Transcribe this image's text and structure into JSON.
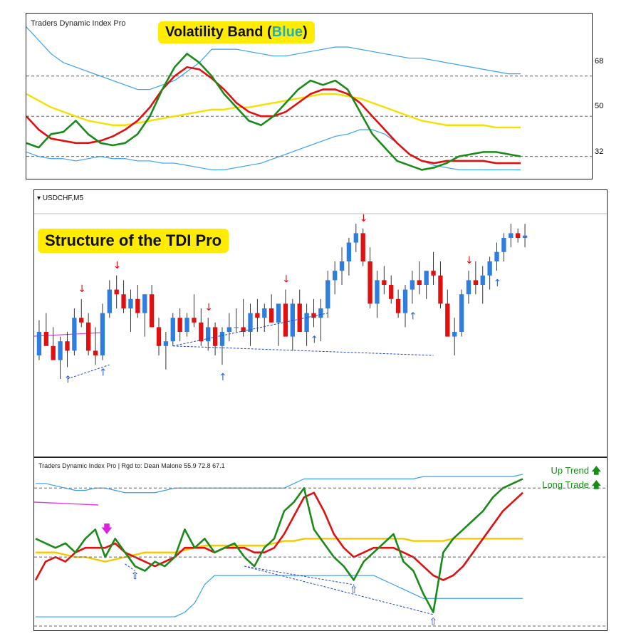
{
  "top_panel": {
    "label": "Traders Dynamic Index Pro",
    "callout_prefix": "Volatility Band (",
    "callout_blue": "Blue",
    "callout_suffix": ")",
    "levels": [
      "68",
      "50",
      "32"
    ]
  },
  "mid_panel": {
    "symbol": "USDCHF,M5",
    "callout": "Structure of the TDI Pro"
  },
  "bottom_panel": {
    "label": "Traders Dynamic Index Pro | Rgd to: Dean Malone   55.9 72.8 67.1",
    "up_trend": "Up Trend",
    "long_trade": "Long Trade"
  },
  "colors": {
    "green_line": "#1a8a1a",
    "red_line": "#e01010",
    "yellow_line": "#f5e000",
    "blue_band": "#3aa0f0",
    "bull_candle": "#2e7de0",
    "bear_candle": "#e01010",
    "callout_bg": "#ffec00",
    "callout_blue_text": "#1ab0c8"
  },
  "chart_data": [
    {
      "type": "line",
      "title": "",
      "ylabel": "",
      "yticks": [
        68,
        50,
        32
      ],
      "ylim": [
        22,
        96
      ],
      "x": [
        0,
        1,
        2,
        3,
        4,
        5,
        6,
        7,
        8,
        9,
        10,
        11,
        12,
        13,
        14,
        15,
        16,
        17,
        18,
        19,
        20,
        21,
        22,
        23,
        24,
        25,
        26,
        27,
        28,
        29,
        30,
        31,
        32,
        33,
        34,
        35,
        36,
        37,
        38,
        39,
        40
      ],
      "series": [
        {
          "role": "rsi",
          "color": "#1a8a1a",
          "values": [
            38,
            36,
            42,
            43,
            48,
            42,
            38,
            37,
            38,
            42,
            50,
            62,
            72,
            78,
            74,
            68,
            60,
            54,
            48,
            46,
            50,
            56,
            62,
            66,
            64,
            66,
            62,
            52,
            42,
            36,
            30,
            28,
            26,
            27,
            29,
            32,
            33,
            34,
            34,
            33,
            32
          ]
        },
        {
          "role": "signal",
          "color": "#e01010",
          "values": [
            50,
            44,
            40,
            39,
            38,
            38,
            39,
            41,
            44,
            48,
            54,
            62,
            68,
            72,
            71,
            67,
            62,
            56,
            52,
            50,
            50,
            52,
            56,
            60,
            62,
            62,
            60,
            56,
            50,
            44,
            38,
            33,
            30,
            29,
            30,
            30,
            30,
            30,
            29,
            29,
            29
          ]
        },
        {
          "role": "market_base",
          "color": "#f5e000",
          "values": [
            60,
            57,
            54,
            52,
            50,
            48,
            47,
            46,
            46,
            47,
            48,
            49,
            50,
            51,
            52,
            53,
            53,
            54,
            54,
            55,
            56,
            57,
            58,
            59,
            60,
            60,
            59,
            58,
            56,
            54,
            52,
            50,
            48,
            47,
            46,
            46,
            46,
            46,
            45,
            45,
            45
          ]
        },
        {
          "role": "volatility_upper",
          "color": "#3aa0f0",
          "values": [
            90,
            84,
            78,
            74,
            72,
            70,
            68,
            66,
            64,
            62,
            62,
            64,
            66,
            70,
            74,
            80,
            80,
            80,
            79,
            78,
            77,
            77,
            78,
            79,
            80,
            81,
            81,
            80,
            79,
            78,
            77,
            76,
            76,
            75,
            74,
            73,
            72,
            71,
            70,
            69,
            69
          ]
        },
        {
          "role": "volatility_lower",
          "color": "#3aa0f0",
          "values": [
            34,
            32,
            31,
            31,
            30,
            31,
            32,
            31,
            31,
            30,
            30,
            29,
            29,
            28,
            27,
            26,
            26,
            27,
            28,
            29,
            31,
            33,
            35,
            37,
            39,
            41,
            42,
            44,
            44,
            42,
            38,
            33,
            30,
            28,
            27,
            26,
            26,
            26,
            26,
            26,
            26
          ]
        }
      ]
    },
    {
      "type": "candlestick",
      "title": "",
      "symbol": "USDCHF,M5",
      "ylim": [
        0,
        100
      ],
      "candles_ohlc": [
        [
          40,
          55,
          38,
          50
        ],
        [
          50,
          58,
          46,
          44
        ],
        [
          44,
          52,
          40,
          38
        ],
        [
          38,
          48,
          30,
          46
        ],
        [
          46,
          50,
          35,
          42
        ],
        [
          42,
          60,
          40,
          56
        ],
        [
          56,
          64,
          52,
          54
        ],
        [
          54,
          58,
          40,
          42
        ],
        [
          42,
          52,
          36,
          40
        ],
        [
          40,
          62,
          38,
          58
        ],
        [
          58,
          72,
          56,
          68
        ],
        [
          68,
          74,
          60,
          66
        ],
        [
          66,
          72,
          58,
          60
        ],
        [
          60,
          68,
          50,
          64
        ],
        [
          64,
          70,
          56,
          58
        ],
        [
          58,
          66,
          48,
          66
        ],
        [
          66,
          70,
          52,
          52
        ],
        [
          52,
          56,
          40,
          44
        ],
        [
          44,
          50,
          34,
          46
        ],
        [
          46,
          58,
          44,
          56
        ],
        [
          56,
          60,
          46,
          50
        ],
        [
          50,
          58,
          48,
          56
        ],
        [
          56,
          66,
          52,
          54
        ],
        [
          54,
          60,
          44,
          46
        ],
        [
          46,
          56,
          42,
          52
        ],
        [
          52,
          54,
          40,
          44
        ],
        [
          44,
          52,
          36,
          50
        ],
        [
          50,
          58,
          46,
          52
        ],
        [
          52,
          60,
          50,
          52
        ],
        [
          52,
          64,
          48,
          50
        ],
        [
          50,
          62,
          44,
          58
        ],
        [
          58,
          64,
          50,
          56
        ],
        [
          56,
          62,
          50,
          60
        ],
        [
          60,
          66,
          56,
          54
        ],
        [
          54,
          60,
          44,
          62
        ],
        [
          62,
          68,
          52,
          48
        ],
        [
          48,
          64,
          42,
          62
        ],
        [
          62,
          68,
          50,
          50
        ],
        [
          50,
          62,
          44,
          58
        ],
        [
          58,
          64,
          52,
          56
        ],
        [
          56,
          64,
          46,
          60
        ],
        [
          60,
          76,
          56,
          72
        ],
        [
          72,
          80,
          66,
          76
        ],
        [
          76,
          86,
          70,
          80
        ],
        [
          80,
          90,
          74,
          88
        ],
        [
          88,
          96,
          84,
          92
        ],
        [
          92,
          94,
          78,
          80
        ],
        [
          80,
          86,
          60,
          62
        ],
        [
          62,
          76,
          56,
          72
        ],
        [
          72,
          78,
          66,
          70
        ],
        [
          70,
          74,
          62,
          64
        ],
        [
          64,
          68,
          56,
          58
        ],
        [
          58,
          70,
          52,
          68
        ],
        [
          68,
          76,
          62,
          72
        ],
        [
          72,
          80,
          66,
          70
        ],
        [
          70,
          76,
          64,
          76
        ],
        [
          76,
          84,
          70,
          74
        ],
        [
          74,
          80,
          60,
          62
        ],
        [
          62,
          68,
          48,
          48
        ],
        [
          48,
          56,
          40,
          50
        ],
        [
          50,
          68,
          48,
          66
        ],
        [
          66,
          76,
          62,
          72
        ],
        [
          72,
          80,
          66,
          70
        ],
        [
          70,
          78,
          62,
          74
        ],
        [
          74,
          82,
          68,
          80
        ],
        [
          80,
          88,
          76,
          84
        ],
        [
          84,
          92,
          80,
          90
        ],
        [
          90,
          96,
          86,
          92
        ],
        [
          92,
          94,
          88,
          90
        ],
        [
          90,
          96,
          86,
          91
        ]
      ],
      "markers": [
        {
          "type": "sell_arrow",
          "at": 6
        },
        {
          "type": "sell_arrow",
          "at": 11
        },
        {
          "type": "buy_arrow",
          "at": 4
        },
        {
          "type": "buy_arrow",
          "at": 9
        },
        {
          "type": "sell_arrow",
          "at": 24
        },
        {
          "type": "sell_arrow",
          "at": 35
        },
        {
          "type": "buy_arrow",
          "at": 26
        },
        {
          "type": "buy_arrow",
          "at": 39
        },
        {
          "type": "sell_arrow",
          "at": 46
        },
        {
          "type": "buy_arrow",
          "at": 53
        },
        {
          "type": "sell_arrow",
          "at": 61
        },
        {
          "type": "buy_arrow",
          "at": 65
        }
      ]
    },
    {
      "type": "line",
      "title": "",
      "x": [
        0,
        1,
        2,
        3,
        4,
        5,
        6,
        7,
        8,
        9,
        10,
        11,
        12,
        13,
        14,
        15,
        16,
        17,
        18,
        19,
        20,
        21,
        22,
        23,
        24,
        25,
        26,
        27,
        28,
        29,
        30,
        31,
        32,
        33,
        34,
        35,
        36,
        37,
        38,
        39,
        40,
        41,
        42,
        43,
        44,
        45,
        46,
        47,
        48,
        49
      ],
      "ylim": [
        20,
        90
      ],
      "series": [
        {
          "role": "rsi",
          "color": "#1a8a1a",
          "values": [
            58,
            56,
            54,
            56,
            52,
            58,
            62,
            50,
            58,
            52,
            46,
            44,
            48,
            46,
            50,
            62,
            54,
            58,
            52,
            54,
            56,
            50,
            46,
            54,
            58,
            70,
            74,
            80,
            62,
            56,
            50,
            46,
            40,
            48,
            52,
            56,
            60,
            48,
            44,
            34,
            26,
            52,
            58,
            62,
            66,
            70,
            76,
            80,
            82,
            84
          ]
        },
        {
          "role": "signal",
          "color": "#e01010",
          "values": [
            40,
            48,
            50,
            48,
            52,
            54,
            54,
            54,
            56,
            52,
            50,
            48,
            46,
            48,
            50,
            54,
            54,
            54,
            52,
            54,
            54,
            54,
            52,
            52,
            54,
            60,
            68,
            76,
            78,
            70,
            60,
            54,
            50,
            52,
            54,
            54,
            54,
            52,
            50,
            46,
            42,
            40,
            42,
            46,
            52,
            58,
            64,
            70,
            74,
            78
          ]
        },
        {
          "role": "market_base",
          "color": "#f5c800",
          "values": [
            52,
            52,
            52,
            51,
            50,
            50,
            49,
            48,
            49,
            50,
            51,
            52,
            52,
            52,
            52,
            53,
            54,
            55,
            55,
            55,
            55,
            55,
            55,
            55,
            56,
            57,
            57,
            58,
            58,
            58,
            58,
            58,
            58,
            58,
            58,
            58,
            58,
            58,
            57,
            57,
            57,
            57,
            58,
            58,
            58,
            58,
            58,
            58,
            58,
            58
          ]
        },
        {
          "role": "volatility_upper",
          "color": "#3aa0f0",
          "values": [
            82,
            82,
            81,
            80,
            79,
            79,
            80,
            80,
            79,
            78,
            78,
            78,
            78,
            79,
            80,
            80,
            80,
            80,
            80,
            80,
            80,
            80,
            80,
            80,
            80,
            80,
            82,
            84,
            84,
            84,
            84,
            84,
            84,
            84,
            84,
            84,
            84,
            84,
            84,
            85,
            85,
            85,
            85,
            85,
            85,
            85,
            85,
            85,
            85,
            86
          ]
        },
        {
          "role": "volatility_lower",
          "color": "#3aa0f0",
          "values": [
            24,
            24,
            24,
            24,
            24,
            24,
            24,
            24,
            24,
            24,
            24,
            24,
            24,
            24,
            24,
            26,
            30,
            38,
            42,
            42,
            42,
            42,
            42,
            42,
            42,
            42,
            42,
            42,
            42,
            42,
            42,
            42,
            42,
            42,
            42,
            40,
            38,
            36,
            34,
            32,
            32,
            32,
            32,
            32,
            32,
            32,
            32,
            32,
            32,
            32
          ]
        }
      ]
    }
  ]
}
